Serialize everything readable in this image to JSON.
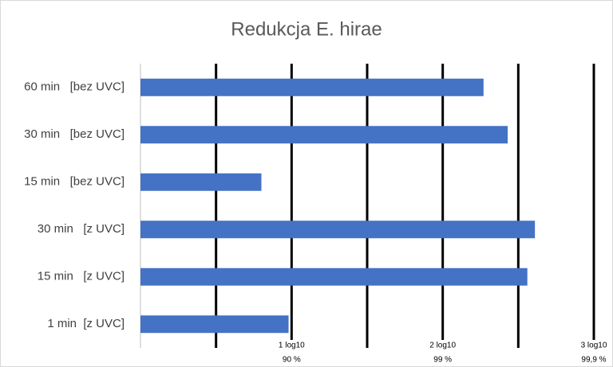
{
  "chart_data": {
    "type": "barh",
    "title": "Redukcja E. hirae",
    "categories": [
      "60 min   [bez UVC]",
      "30 min   [bez UVC]",
      "15 min   [bez UVC]",
      "30 min   [z UVC]",
      "15 min   [z UVC]",
      "1 min  [z UVC]"
    ],
    "values": [
      2.27,
      2.43,
      0.8,
      2.61,
      2.56,
      0.98
    ],
    "color": "#4472c4",
    "xlim": [
      0,
      3
    ],
    "xticks": [
      {
        "value": 1,
        "label": "1 log10",
        "sublabel": "90 %"
      },
      {
        "value": 2,
        "label": "2 log10",
        "sublabel": "99 %"
      },
      {
        "value": 3,
        "label": "3 log10",
        "sublabel": "99,9 %"
      }
    ],
    "minor_xticks": [
      0.5,
      1.5,
      2.5
    ],
    "grid": true
  }
}
